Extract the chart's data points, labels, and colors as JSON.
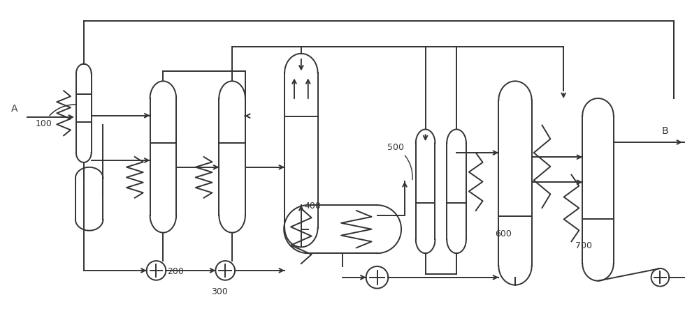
{
  "bg_color": "#ffffff",
  "line_color": "#333333",
  "lw": 1.4,
  "figw": 10.0,
  "figh": 4.46
}
